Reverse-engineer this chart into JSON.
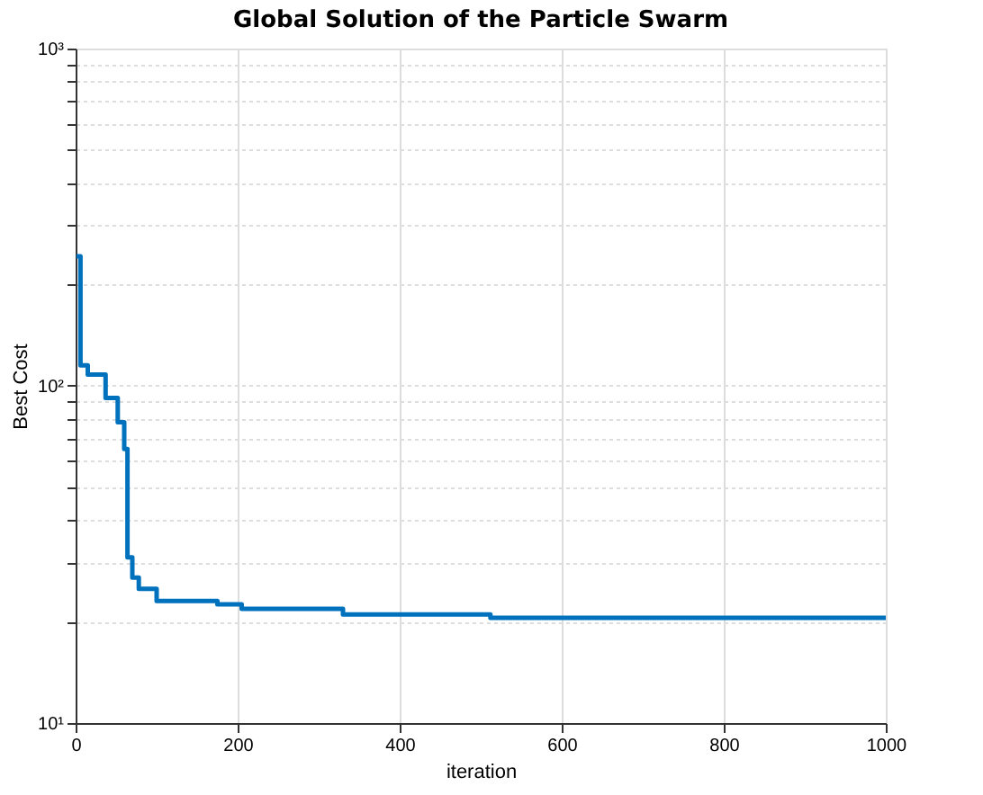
{
  "chart_data": {
    "type": "step",
    "title": "Global Solution of the Particle Swarm",
    "xlabel": "iteration",
    "ylabel": "Best Cost",
    "series": [
      {
        "color": "#0072bd",
        "x": [
          1,
          6,
          15,
          37,
          52,
          60,
          64,
          70,
          78,
          100,
          175,
          205,
          330,
          512,
          1000
        ],
        "values": [
          242,
          115,
          108,
          92,
          78,
          65,
          31,
          27,
          25,
          23,
          22.5,
          21.8,
          21,
          20.5,
          20.5
        ]
      }
    ],
    "xlim": [
      0,
      1000
    ],
    "xticks": [
      0,
      200,
      400,
      600,
      800,
      1000
    ],
    "ylim": [
      10,
      1000
    ],
    "log": true,
    "yticks": [
      {
        "value": 10,
        "label": "10¹"
      },
      {
        "value": 20,
        "label": null
      },
      {
        "value": 30,
        "label": null
      },
      {
        "value": 40,
        "label": null
      },
      {
        "value": 50,
        "label": null
      },
      {
        "value": 60,
        "label": null
      },
      {
        "value": 70,
        "label": null
      },
      {
        "value": 80,
        "label": null
      },
      {
        "value": 90,
        "label": null
      },
      {
        "value": 100,
        "label": "10²"
      },
      {
        "value": 200,
        "label": null
      },
      {
        "value": 300,
        "label": null
      },
      {
        "value": 400,
        "label": null
      },
      {
        "value": 500,
        "label": null
      },
      {
        "value": 600,
        "label": null
      },
      {
        "value": 700,
        "label": null
      },
      {
        "value": 800,
        "label": null
      },
      {
        "value": 900,
        "label": null
      },
      {
        "value": 1000,
        "label": "10³"
      }
    ],
    "grid": true,
    "marker": "none",
    "line_style": "solid"
  }
}
